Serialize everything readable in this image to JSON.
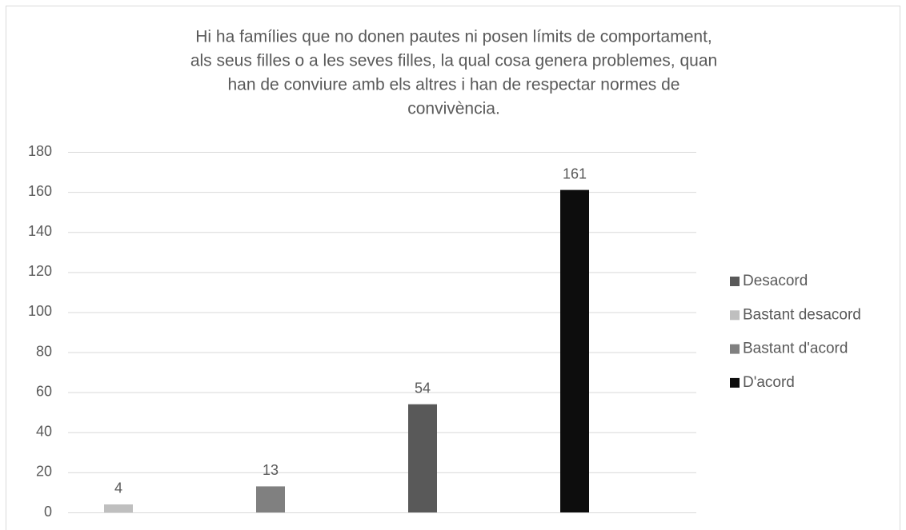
{
  "chart_data": {
    "type": "bar",
    "title": [
      "Hi ha famílies que no donen pautes ni posen límits de comportament,",
      "als seus filles o a les seves filles, la qual cosa genera problemes, quan",
      "han de conviure amb els altres i han de respectar normes de",
      "convivència."
    ],
    "series": [
      {
        "name": "Desacord",
        "color": "#595959",
        "values": [
          null,
          null,
          54,
          null
        ]
      },
      {
        "name": "Bastant desacord",
        "color": "#bfbfbf",
        "values": [
          4,
          null,
          null,
          null
        ]
      },
      {
        "name": "Bastant d'acord",
        "color": "#808080",
        "values": [
          null,
          13,
          null,
          null
        ]
      },
      {
        "name": "D'acord",
        "color": "#0d0d0d",
        "values": [
          null,
          null,
          null,
          161
        ]
      }
    ],
    "ylim": [
      0,
      180
    ],
    "yticks": [
      0,
      20,
      40,
      60,
      80,
      100,
      120,
      140,
      160,
      180
    ],
    "grid": true,
    "legend": "right"
  }
}
